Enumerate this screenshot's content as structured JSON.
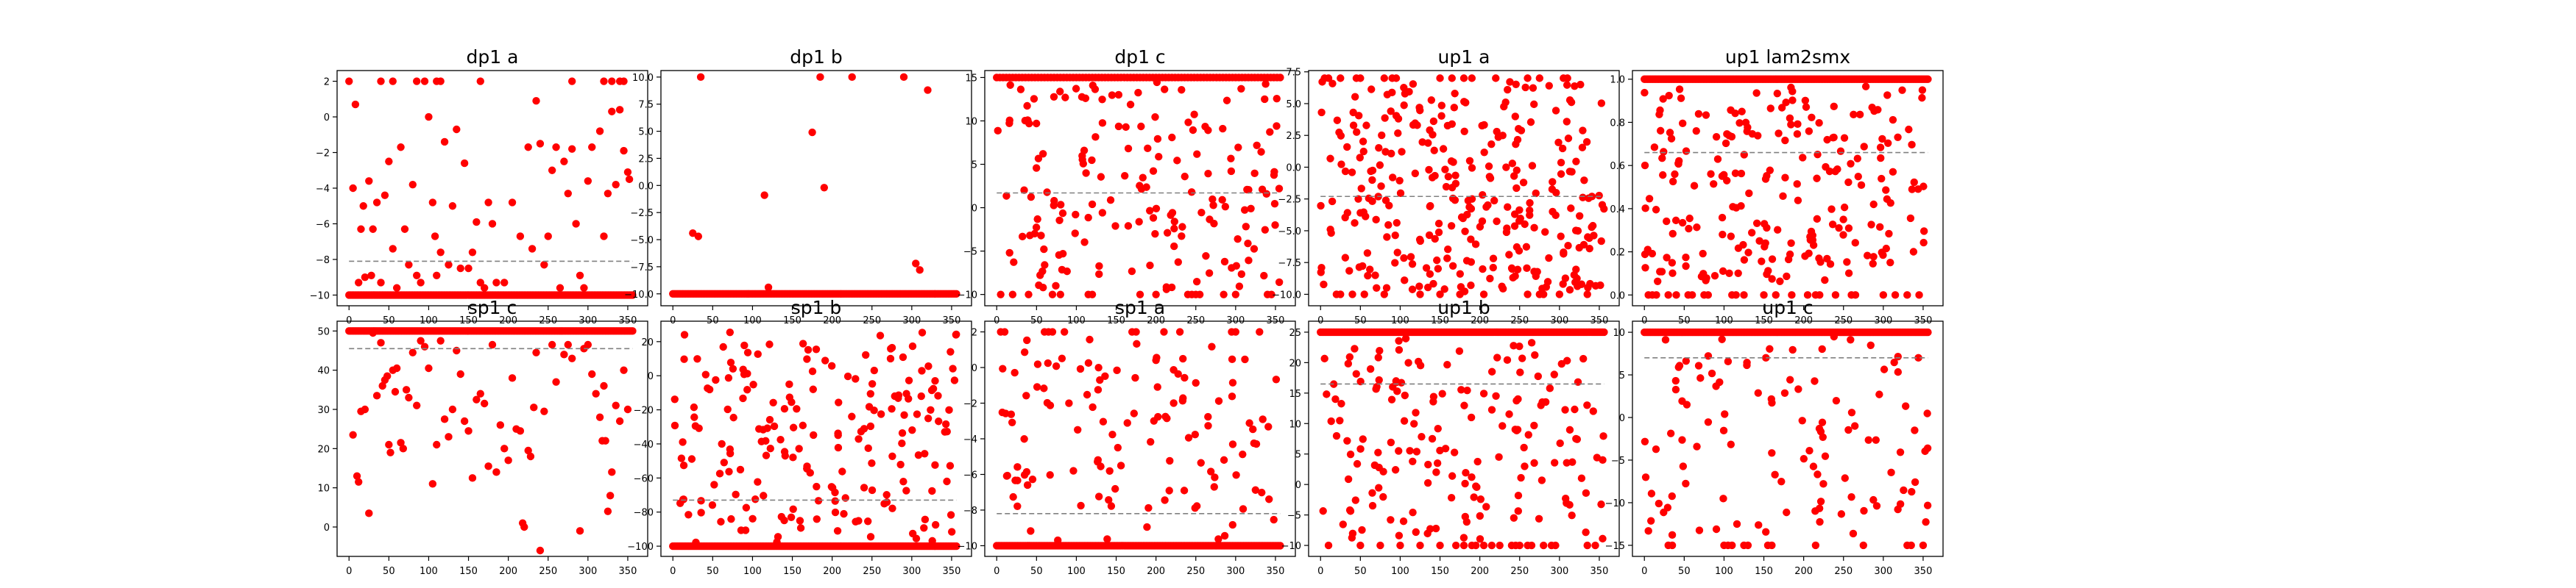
{
  "colors": {
    "points": "#ff0000",
    "mean_line": "#808080",
    "axes": "#000000"
  },
  "chart_data": [
    {
      "type": "scatter",
      "title": "dp1 a",
      "xlim": [
        -15,
        375
      ],
      "ylim": [
        -10.6,
        2.6
      ],
      "xticks": [
        0,
        50,
        100,
        150,
        200,
        250,
        300,
        350
      ],
      "yticks": [
        -10,
        -8,
        -6,
        -4,
        -2,
        0,
        2
      ],
      "ytick_labels": [
        "−10",
        "−8",
        "−6",
        "−4",
        "−2",
        "0",
        "2"
      ],
      "mean": -8.1,
      "floor": -10,
      "floor_range": [
        0,
        356
      ],
      "floor_step": 2,
      "ceil": 2,
      "ceil_x": [
        0,
        40,
        55,
        85,
        95,
        110,
        115,
        165,
        280,
        320,
        330,
        340,
        345
      ],
      "points": [
        [
          5,
          -4
        ],
        [
          8,
          0.7
        ],
        [
          12,
          -9.3
        ],
        [
          15,
          -6.3
        ],
        [
          18,
          -5
        ],
        [
          20,
          -9
        ],
        [
          25,
          -3.6
        ],
        [
          28,
          -8.9
        ],
        [
          30,
          -6.3
        ],
        [
          35,
          -4.8
        ],
        [
          40,
          -9.3
        ],
        [
          45,
          -4.4
        ],
        [
          50,
          -2.5
        ],
        [
          55,
          -7.4
        ],
        [
          60,
          -9.6
        ],
        [
          65,
          -1.7
        ],
        [
          70,
          -6.3
        ],
        [
          75,
          -8.3
        ],
        [
          80,
          -3.8
        ],
        [
          85,
          -8.9
        ],
        [
          90,
          -9.3
        ],
        [
          100,
          0
        ],
        [
          105,
          -4.8
        ],
        [
          108,
          -6.7
        ],
        [
          110,
          -8.9
        ],
        [
          115,
          -7.6
        ],
        [
          120,
          -1.4
        ],
        [
          125,
          -8.3
        ],
        [
          130,
          -5
        ],
        [
          135,
          -0.7
        ],
        [
          140,
          -8.5
        ],
        [
          145,
          -2.6
        ],
        [
          150,
          -8.5
        ],
        [
          155,
          -7.6
        ],
        [
          160,
          -5.9
        ],
        [
          165,
          -9.3
        ],
        [
          170,
          -9.6
        ],
        [
          175,
          -4.8
        ],
        [
          180,
          -6
        ],
        [
          185,
          -9.3
        ],
        [
          195,
          -9.3
        ],
        [
          205,
          -4.8
        ],
        [
          215,
          -6.7
        ],
        [
          225,
          -1.7
        ],
        [
          230,
          -7.4
        ],
        [
          235,
          0.9
        ],
        [
          240,
          -1.5
        ],
        [
          245,
          -8.3
        ],
        [
          250,
          -6.7
        ],
        [
          255,
          -3
        ],
        [
          260,
          -1.7
        ],
        [
          265,
          -9.6
        ],
        [
          270,
          -2.5
        ],
        [
          275,
          -4.3
        ],
        [
          280,
          -1.8
        ],
        [
          285,
          -6
        ],
        [
          290,
          -8.9
        ],
        [
          295,
          -9.6
        ],
        [
          300,
          -3.6
        ],
        [
          305,
          -1.7
        ],
        [
          315,
          -0.8
        ],
        [
          320,
          -6.7
        ],
        [
          325,
          -4.3
        ],
        [
          330,
          0.3
        ],
        [
          335,
          -3.8
        ],
        [
          340,
          0.4
        ],
        [
          345,
          -1.9
        ],
        [
          350,
          -3.1
        ],
        [
          352,
          -3.5
        ]
      ]
    },
    {
      "type": "scatter",
      "title": "dp1 b",
      "xlim": [
        -15,
        375
      ],
      "ylim": [
        -11.1,
        10.6
      ],
      "xticks": [
        0,
        50,
        100,
        150,
        200,
        250,
        300,
        350
      ],
      "yticks": [
        -10,
        -7.5,
        -5,
        -2.5,
        0,
        2.5,
        5,
        7.5,
        10
      ],
      "ytick_labels": [
        "−10.0",
        "−7.5",
        "−5.0",
        "−2.5",
        "0.0",
        "2.5",
        "5.0",
        "7.5",
        "10.0"
      ],
      "mean": null,
      "floor": -10,
      "floor_range": [
        0,
        356
      ],
      "floor_step": 2,
      "ceil": 10,
      "ceil_x": [
        35,
        185,
        225,
        290
      ],
      "points": [
        [
          25,
          -4.4
        ],
        [
          32,
          -4.7
        ],
        [
          115,
          -0.9
        ],
        [
          120,
          -9.4
        ],
        [
          175,
          4.9
        ],
        [
          190,
          -0.2
        ],
        [
          305,
          -7.2
        ],
        [
          310,
          -7.8
        ],
        [
          320,
          8.8
        ]
      ]
    },
    {
      "type": "scatter",
      "title": "dp1 c",
      "xlim": [
        -15,
        375
      ],
      "ylim": [
        -11.3,
        15.8
      ],
      "xticks": [
        0,
        50,
        100,
        150,
        200,
        250,
        300,
        350
      ],
      "yticks": [
        -10,
        -5,
        0,
        5,
        10,
        15
      ],
      "ytick_labels": [
        "−10",
        "−5",
        "0",
        "5",
        "10",
        "15"
      ],
      "mean": 1.7,
      "floor": -10,
      "floor_x": [
        5,
        20,
        40,
        70,
        80,
        115,
        120,
        180,
        200,
        240,
        245,
        250,
        255,
        285,
        300,
        340,
        345
      ],
      "ceil": 15,
      "ceil_range": [
        0,
        356
      ],
      "ceil_step": 4,
      "scatter": {
        "seed": 31,
        "n": 170,
        "x": [
          0,
          356
        ],
        "y": [
          -9.5,
          14.5
        ]
      }
    },
    {
      "type": "scatter",
      "title": "up1 a",
      "xlim": [
        -15,
        375
      ],
      "ylim": [
        -10.9,
        7.6
      ],
      "xticks": [
        0,
        50,
        100,
        150,
        200,
        250,
        300,
        350
      ],
      "yticks": [
        -10,
        -7.5,
        -5,
        -2.5,
        0,
        2.5,
        5,
        7.5
      ],
      "ytick_labels": [
        "−10.0",
        "−7.5",
        "−5.0",
        "−2.5",
        "0.0",
        "2.5",
        "5.0",
        "7.5"
      ],
      "mean": -2.3,
      "floor": -10,
      "floor_x": [
        20,
        25,
        40,
        55,
        80,
        125,
        150,
        175,
        205,
        260,
        275,
        280,
        300,
        335
      ],
      "ceil": 7,
      "ceil_x": [
        5,
        10,
        25,
        45,
        50,
        80,
        90,
        95,
        150,
        165,
        180,
        190,
        220,
        260,
        275,
        305,
        310
      ],
      "scatter": {
        "seed": 47,
        "n": 300,
        "x": [
          0,
          356
        ],
        "y": [
          -9.8,
          6.8
        ]
      }
    },
    {
      "type": "scatter",
      "title": "up1 lam2smx",
      "xlim": [
        -15,
        375
      ],
      "ylim": [
        -0.05,
        1.04
      ],
      "xticks": [
        0,
        50,
        100,
        150,
        200,
        250,
        300,
        350
      ],
      "yticks": [
        0,
        0.2,
        0.4,
        0.6,
        0.8,
        1
      ],
      "ytick_labels": [
        "0.0",
        "0.2",
        "0.4",
        "0.6",
        "0.8",
        "1.0"
      ],
      "mean": 0.66,
      "floor": 0,
      "floor_x": [
        5,
        10,
        15,
        30,
        40,
        55,
        60,
        75,
        80,
        110,
        115,
        125,
        150,
        165,
        185,
        205,
        215,
        220,
        240,
        260,
        265,
        300,
        315,
        330,
        345
      ],
      "ceil": 1,
      "ceil_range": [
        0,
        356
      ],
      "ceil_step": 2,
      "scatter": {
        "seed": 59,
        "n": 220,
        "x": [
          0,
          356
        ],
        "y": [
          0.05,
          0.97
        ]
      }
    },
    {
      "type": "scatter",
      "title": "sp1 c",
      "xlim": [
        -15,
        375
      ],
      "ylim": [
        -7.5,
        52.5
      ],
      "xticks": [
        0,
        50,
        100,
        150,
        200,
        250,
        300,
        350
      ],
      "yticks": [
        0,
        10,
        20,
        30,
        40,
        50
      ],
      "ytick_labels": [
        "0",
        "10",
        "20",
        "30",
        "40",
        "50"
      ],
      "mean": 45.5,
      "floor": null,
      "ceil": 50,
      "ceil_range": [
        0,
        356
      ],
      "ceil_step": 2,
      "points": [
        [
          5,
          23.5
        ],
        [
          10,
          13
        ],
        [
          12,
          11.5
        ],
        [
          15,
          29.5
        ],
        [
          20,
          30
        ],
        [
          25,
          3.5
        ],
        [
          30,
          49.5
        ],
        [
          35,
          33.5
        ],
        [
          40,
          47
        ],
        [
          42,
          36
        ],
        [
          45,
          37.5
        ],
        [
          48,
          38.5
        ],
        [
          50,
          21
        ],
        [
          52,
          19
        ],
        [
          55,
          40
        ],
        [
          58,
          34.5
        ],
        [
          60,
          40.5
        ],
        [
          65,
          21.5
        ],
        [
          68,
          20
        ],
        [
          72,
          35
        ],
        [
          75,
          33
        ],
        [
          80,
          44.5
        ],
        [
          85,
          31
        ],
        [
          90,
          47.5
        ],
        [
          95,
          46
        ],
        [
          100,
          40.5
        ],
        [
          105,
          11
        ],
        [
          110,
          21
        ],
        [
          115,
          47.5
        ],
        [
          120,
          27.5
        ],
        [
          125,
          23
        ],
        [
          130,
          30
        ],
        [
          135,
          45
        ],
        [
          140,
          39
        ],
        [
          145,
          27
        ],
        [
          150,
          24.5
        ],
        [
          155,
          12.5
        ],
        [
          160,
          32.5
        ],
        [
          165,
          34
        ],
        [
          170,
          31.5
        ],
        [
          175,
          15.5
        ],
        [
          180,
          46.5
        ],
        [
          185,
          14
        ],
        [
          190,
          26
        ],
        [
          195,
          20
        ],
        [
          200,
          17
        ],
        [
          205,
          38
        ],
        [
          210,
          25
        ],
        [
          215,
          24.5
        ],
        [
          218,
          1
        ],
        [
          220,
          0
        ],
        [
          225,
          19.5
        ],
        [
          228,
          18
        ],
        [
          232,
          30.5
        ],
        [
          235,
          44.5
        ],
        [
          240,
          -6
        ],
        [
          245,
          29.5
        ],
        [
          255,
          46.5
        ],
        [
          260,
          37
        ],
        [
          270,
          44
        ],
        [
          275,
          46.5
        ],
        [
          280,
          43
        ],
        [
          290,
          -1
        ],
        [
          295,
          45.5
        ],
        [
          300,
          46.5
        ],
        [
          305,
          39
        ],
        [
          310,
          34
        ],
        [
          315,
          28
        ],
        [
          318,
          22
        ],
        [
          320,
          36
        ],
        [
          322,
          22
        ],
        [
          325,
          4
        ],
        [
          328,
          8
        ],
        [
          330,
          14
        ],
        [
          335,
          31
        ],
        [
          340,
          27
        ],
        [
          345,
          40
        ],
        [
          350,
          30
        ]
      ]
    },
    {
      "type": "scatter",
      "title": "sp1 b",
      "xlim": [
        -15,
        375
      ],
      "ylim": [
        -106,
        32
      ],
      "xticks": [
        0,
        50,
        100,
        150,
        200,
        250,
        300,
        350
      ],
      "yticks": [
        -100,
        -80,
        -60,
        -40,
        -20,
        0,
        20
      ],
      "ytick_labels": [
        "−100",
        "−80",
        "−60",
        "−40",
        "−20",
        "0",
        "20"
      ],
      "mean": -73,
      "floor": -100,
      "floor_range": [
        0,
        356
      ],
      "floor_step": 2,
      "ceil": null,
      "scatter": {
        "seed": 73,
        "n": 200,
        "x": [
          0,
          356
        ],
        "y": [
          -98,
          26
        ]
      }
    },
    {
      "type": "scatter",
      "title": "sp1 a",
      "xlim": [
        -15,
        375
      ],
      "ylim": [
        -10.6,
        2.6
      ],
      "xticks": [
        0,
        50,
        100,
        150,
        200,
        250,
        300,
        350
      ],
      "yticks": [
        -10,
        -8,
        -6,
        -4,
        -2,
        0,
        2
      ],
      "ytick_labels": [
        "−10",
        "−8",
        "−6",
        "−4",
        "−2",
        "0",
        "2"
      ],
      "mean": -8.2,
      "floor": -10,
      "floor_range": [
        0,
        356
      ],
      "floor_step": 2,
      "ceil": 2,
      "ceil_x": [
        5,
        10,
        60,
        65,
        70,
        85,
        170,
        175,
        210,
        230,
        295,
        300,
        330
      ],
      "scatter": {
        "seed": 89,
        "n": 120,
        "x": [
          0,
          356
        ],
        "y": [
          -9.8,
          1.6
        ]
      }
    },
    {
      "type": "scatter",
      "title": "up1 b",
      "xlim": [
        -15,
        375
      ],
      "ylim": [
        -11.8,
        26.8
      ],
      "xticks": [
        0,
        50,
        100,
        150,
        200,
        250,
        300,
        350
      ],
      "yticks": [
        -10,
        -5,
        0,
        5,
        10,
        15,
        20,
        25
      ],
      "ytick_labels": [
        "−10",
        "−5",
        "0",
        "5",
        "10",
        "15",
        "20",
        "25"
      ],
      "mean": 16.5,
      "floor": -10,
      "floor_x": [
        10,
        50,
        75,
        100,
        125,
        150,
        170,
        180,
        190,
        195,
        205,
        215,
        225,
        240,
        245,
        250,
        260,
        265,
        280,
        290,
        295,
        335,
        345
      ],
      "ceil": 25,
      "ceil_range": [
        0,
        356
      ],
      "ceil_step": 2,
      "scatter": {
        "seed": 101,
        "n": 170,
        "x": [
          0,
          356
        ],
        "y": [
          -9,
          24
        ]
      }
    },
    {
      "type": "scatter",
      "title": "up1 c",
      "xlim": [
        -15,
        375
      ],
      "ylim": [
        -16.3,
        11.3
      ],
      "xticks": [
        0,
        50,
        100,
        150,
        200,
        250,
        300,
        350
      ],
      "yticks": [
        -15,
        -10,
        -5,
        0,
        5,
        10
      ],
      "ytick_labels": [
        "−15",
        "−10",
        "−5",
        "0",
        "5",
        "10"
      ],
      "mean": 7,
      "floor": -15,
      "floor_x": [
        30,
        35,
        100,
        105,
        110,
        125,
        130,
        155,
        160,
        215,
        275,
        330,
        335,
        350
      ],
      "ceil": 10,
      "ceil_range": [
        0,
        356
      ],
      "ceil_step": 2,
      "scatter": {
        "seed": 113,
        "n": 110,
        "x": [
          0,
          356
        ],
        "y": [
          -14,
          9.6
        ]
      }
    }
  ]
}
